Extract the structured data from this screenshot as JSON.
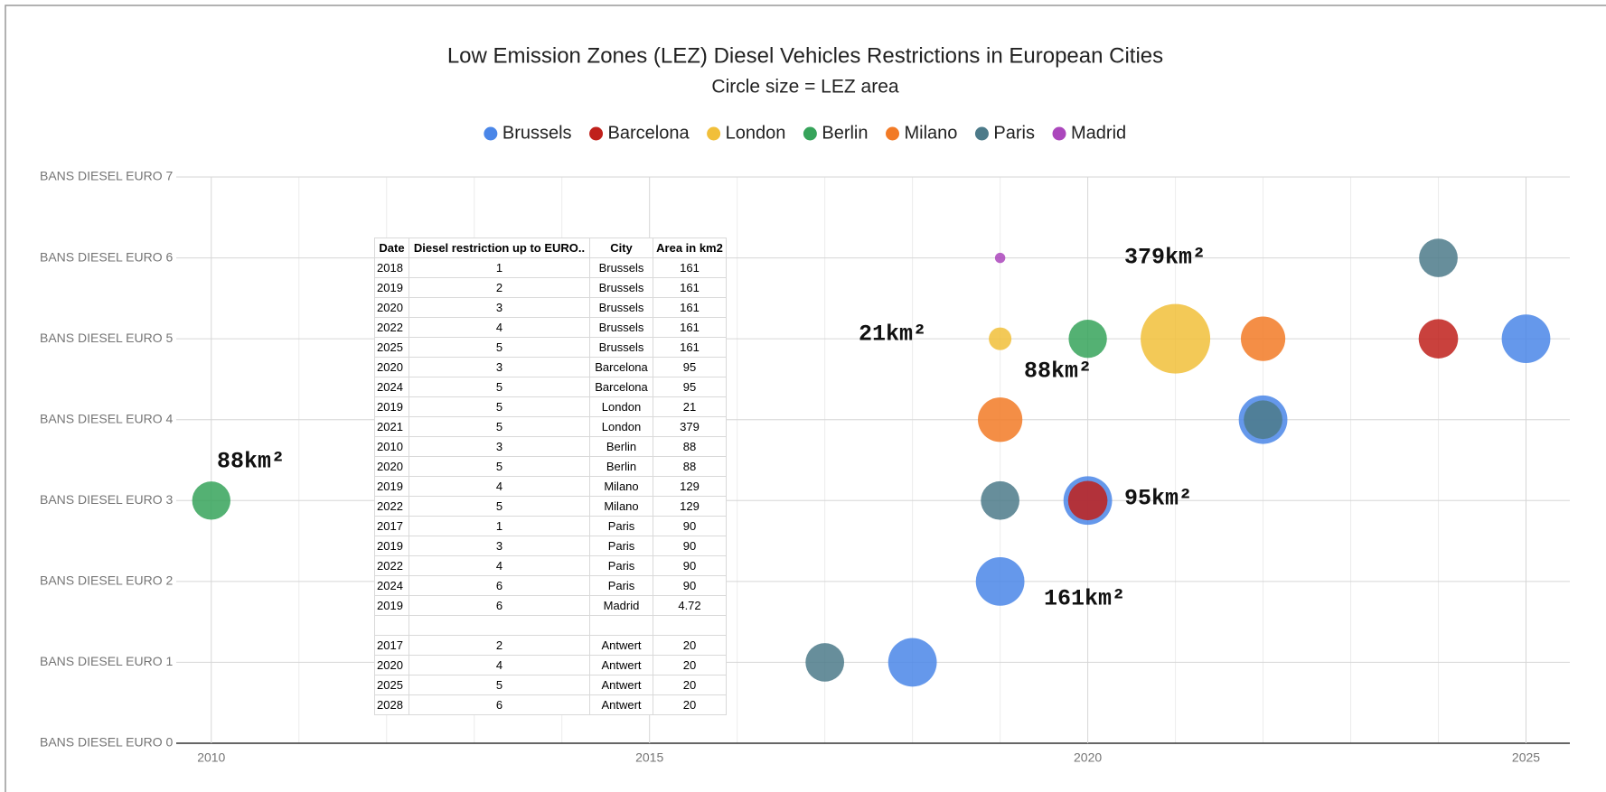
{
  "chart_data": {
    "type": "bubble",
    "title": "Low Emission Zones (LEZ) Diesel Vehicles Restrictions in European Cities",
    "subtitle": "Circle size = LEZ area",
    "legend": "top",
    "grid": true,
    "xlim": [
      2009.6,
      2025.5
    ],
    "xticks": [
      2010,
      2015,
      2020,
      2025
    ],
    "ylim": [
      0,
      7
    ],
    "yticks": [
      {
        "value": 0,
        "label": "BANS DIESEL EURO 0"
      },
      {
        "value": 1,
        "label": "BANS DIESEL EURO 1"
      },
      {
        "value": 2,
        "label": "BANS DIESEL EURO 2"
      },
      {
        "value": 3,
        "label": "BANS DIESEL EURO 3"
      },
      {
        "value": 4,
        "label": "BANS DIESEL EURO 4"
      },
      {
        "value": 5,
        "label": "BANS DIESEL EURO 5"
      },
      {
        "value": 6,
        "label": "BANS DIESEL EURO 6"
      },
      {
        "value": 7,
        "label": "BANS DIESEL EURO 7"
      }
    ],
    "series": [
      {
        "name": "Brussels",
        "color": "#4a86e8",
        "x": [
          2018,
          2019,
          2020,
          2022,
          2025
        ],
        "values": [
          1,
          2,
          3,
          4,
          5
        ],
        "sizes": [
          161,
          161,
          161,
          161,
          161
        ]
      },
      {
        "name": "Barcelona",
        "color": "#c0201b",
        "x": [
          2020,
          2024
        ],
        "values": [
          3,
          5
        ],
        "sizes": [
          95,
          95
        ]
      },
      {
        "name": "London",
        "color": "#f1bf3a",
        "x": [
          2019,
          2021
        ],
        "values": [
          5,
          5
        ],
        "sizes": [
          21,
          379
        ]
      },
      {
        "name": "Berlin",
        "color": "#36a35a",
        "x": [
          2010,
          2020
        ],
        "values": [
          3,
          5
        ],
        "sizes": [
          88,
          88
        ]
      },
      {
        "name": "Milano",
        "color": "#f27a26",
        "x": [
          2019,
          2022
        ],
        "values": [
          4,
          5
        ],
        "sizes": [
          129,
          129
        ]
      },
      {
        "name": "Paris",
        "color": "#4c7a89",
        "x": [
          2017,
          2019,
          2022,
          2024
        ],
        "values": [
          1,
          3,
          4,
          6
        ],
        "sizes": [
          90,
          90,
          90,
          90
        ]
      },
      {
        "name": "Madrid",
        "color": "#ab47bc",
        "x": [
          2019
        ],
        "values": [
          6
        ],
        "sizes": [
          4.72
        ]
      }
    ],
    "annotations": [
      "88km²",
      "21km²",
      "88km²",
      "379km²",
      "95km²",
      "161km²"
    ]
  },
  "table": {
    "header": [
      "Date",
      "Diesel restriction up to EURO..",
      "City",
      "Area in km2"
    ],
    "rows": [
      [
        "2018",
        "1",
        "Brussels",
        "161"
      ],
      [
        "2019",
        "2",
        "Brussels",
        "161"
      ],
      [
        "2020",
        "3",
        "Brussels",
        "161"
      ],
      [
        "2022",
        "4",
        "Brussels",
        "161"
      ],
      [
        "2025",
        "5",
        "Brussels",
        "161"
      ],
      [
        "2020",
        "3",
        "Barcelona",
        "95"
      ],
      [
        "2024",
        "5",
        "Barcelona",
        "95"
      ],
      [
        "2019",
        "5",
        "London",
        "21"
      ],
      [
        "2021",
        "5",
        "London",
        "379"
      ],
      [
        "2010",
        "3",
        "Berlin",
        "88"
      ],
      [
        "2020",
        "5",
        "Berlin",
        "88"
      ],
      [
        "2019",
        "4",
        "Milano",
        "129"
      ],
      [
        "2022",
        "5",
        "Milano",
        "129"
      ],
      [
        "2017",
        "1",
        "Paris",
        "90"
      ],
      [
        "2019",
        "3",
        "Paris",
        "90"
      ],
      [
        "2022",
        "4",
        "Paris",
        "90"
      ],
      [
        "2024",
        "6",
        "Paris",
        "90"
      ],
      [
        "2019",
        "6",
        "Madrid",
        "4.72"
      ],
      [
        null,
        null,
        null,
        null
      ],
      [
        "2017",
        "2",
        "Antwert",
        "20"
      ],
      [
        "2020",
        "4",
        "Antwert",
        "20"
      ],
      [
        "2025",
        "5",
        "Antwert",
        "20"
      ],
      [
        "2028",
        "6",
        "Antwert",
        "20"
      ]
    ]
  }
}
